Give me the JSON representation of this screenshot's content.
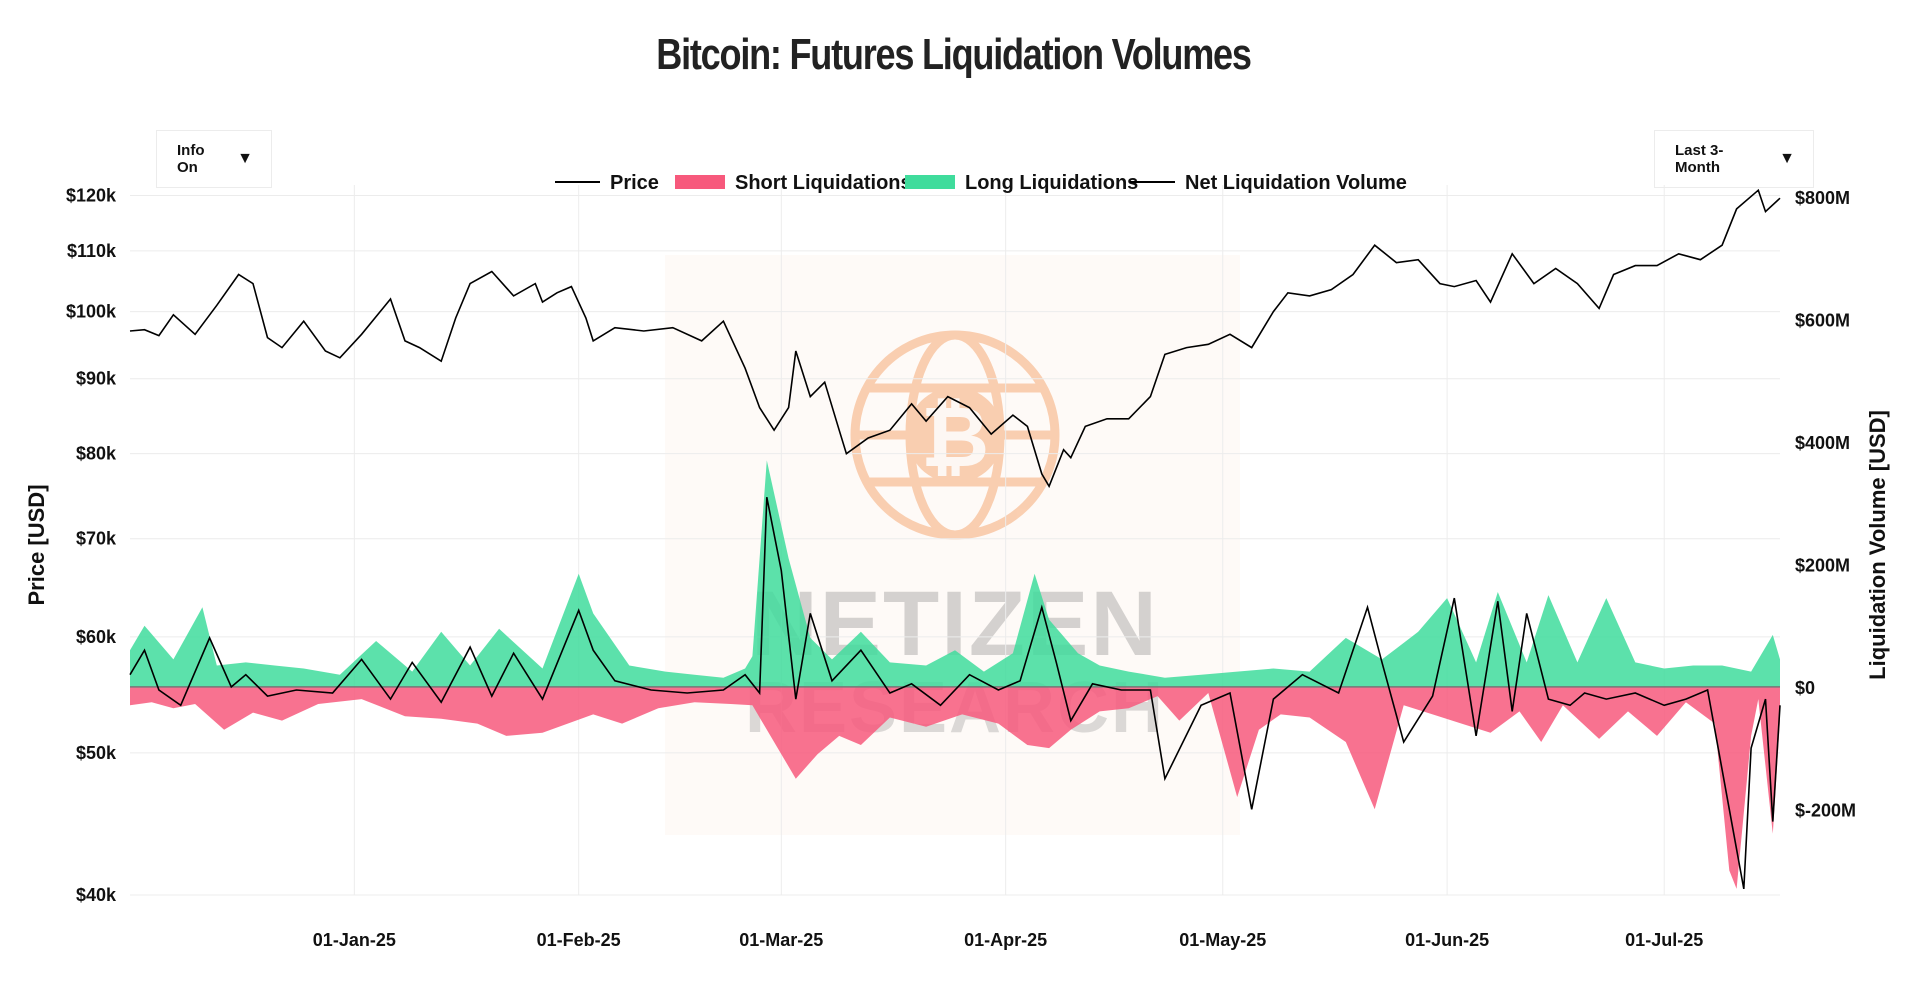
{
  "title": "Bitcoin: Futures Liquidation Volumes",
  "controls": {
    "info_label": "Info On",
    "range_label": "Last 3-Month",
    "dropdown_arrow": "▼"
  },
  "watermark": {
    "line1": "NETIZEN",
    "line2": "RESEARCH",
    "logo": "bitcoin-globe-logo"
  },
  "colors": {
    "price": "#000000",
    "short": "#f7597c",
    "long": "#3fdc9c",
    "net": "#000000",
    "watermark": "#f5a36b"
  },
  "chart_data": {
    "type": "area",
    "title": "Bitcoin: Futures Liquidation Volumes",
    "xlabel": "",
    "ylabel_left": "Price [USD]",
    "ylabel_right": "Liquidation Volume [USD]",
    "y_left_scale": "log",
    "y_left_range": [
      40000,
      122000
    ],
    "y_right_range": [
      -340000000,
      820000000
    ],
    "x_range": [
      "2024-12-01",
      "2025-07-17"
    ],
    "grid": true,
    "legend_position": "top-center",
    "legend": [
      "Price",
      "Short Liquidations",
      "Long Liquidations",
      "Net Liquidation Volume"
    ],
    "x_ticks": [
      {
        "date": "2025-01-01",
        "label": "01-Jan-25"
      },
      {
        "date": "2025-02-01",
        "label": "01-Feb-25"
      },
      {
        "date": "2025-03-01",
        "label": "01-Mar-25"
      },
      {
        "date": "2025-04-01",
        "label": "01-Apr-25"
      },
      {
        "date": "2025-05-01",
        "label": "01-May-25"
      },
      {
        "date": "2025-06-01",
        "label": "01-Jun-25"
      },
      {
        "date": "2025-07-01",
        "label": "01-Jul-25"
      }
    ],
    "y_left_ticks": [
      {
        "value": 120000,
        "label": "$120k"
      },
      {
        "value": 110000,
        "label": "$110k"
      },
      {
        "value": 100000,
        "label": "$100k"
      },
      {
        "value": 90000,
        "label": "$90k"
      },
      {
        "value": 80000,
        "label": "$80k"
      },
      {
        "value": 70000,
        "label": "$70k"
      },
      {
        "value": 60000,
        "label": "$60k"
      },
      {
        "value": 50000,
        "label": "$50k"
      },
      {
        "value": 40000,
        "label": "$40k"
      }
    ],
    "y_right_ticks": [
      {
        "value": 800000000,
        "label": "$800M"
      },
      {
        "value": 600000000,
        "label": "$600M"
      },
      {
        "value": 400000000,
        "label": "$400M"
      },
      {
        "value": 200000000,
        "label": "$200M"
      },
      {
        "value": 0,
        "label": "$0"
      },
      {
        "value": -200000000,
        "label": "$-200M"
      }
    ],
    "series": [
      {
        "name": "Price",
        "axis": "left",
        "x": [
          "2024-12-01",
          "2024-12-03",
          "2024-12-05",
          "2024-12-07",
          "2024-12-10",
          "2024-12-13",
          "2024-12-16",
          "2024-12-18",
          "2024-12-20",
          "2024-12-22",
          "2024-12-25",
          "2024-12-28",
          "2024-12-30",
          "2025-01-02",
          "2025-01-06",
          "2025-01-08",
          "2025-01-10",
          "2025-01-13",
          "2025-01-15",
          "2025-01-17",
          "2025-01-20",
          "2025-01-23",
          "2025-01-26",
          "2025-01-27",
          "2025-01-29",
          "2025-01-31",
          "2025-02-02",
          "2025-02-03",
          "2025-02-06",
          "2025-02-10",
          "2025-02-14",
          "2025-02-18",
          "2025-02-21",
          "2025-02-24",
          "2025-02-26",
          "2025-02-27",
          "2025-02-28",
          "2025-03-02",
          "2025-03-03",
          "2025-03-05",
          "2025-03-07",
          "2025-03-09",
          "2025-03-10",
          "2025-03-13",
          "2025-03-16",
          "2025-03-19",
          "2025-03-21",
          "2025-03-24",
          "2025-03-27",
          "2025-03-30",
          "2025-04-02",
          "2025-04-04",
          "2025-04-06",
          "2025-04-07",
          "2025-04-09",
          "2025-04-10",
          "2025-04-12",
          "2025-04-15",
          "2025-04-18",
          "2025-04-21",
          "2025-04-23",
          "2025-04-26",
          "2025-04-29",
          "2025-05-02",
          "2025-05-05",
          "2025-05-08",
          "2025-05-10",
          "2025-05-13",
          "2025-05-16",
          "2025-05-19",
          "2025-05-22",
          "2025-05-25",
          "2025-05-28",
          "2025-05-31",
          "2025-06-02",
          "2025-06-05",
          "2025-06-07",
          "2025-06-10",
          "2025-06-13",
          "2025-06-16",
          "2025-06-19",
          "2025-06-22",
          "2025-06-24",
          "2025-06-27",
          "2025-06-30",
          "2025-07-03",
          "2025-07-06",
          "2025-07-09",
          "2025-07-11",
          "2025-07-14",
          "2025-07-15",
          "2025-07-17"
        ],
        "values": [
          97000,
          97200,
          96300,
          99500,
          96500,
          101000,
          106000,
          104500,
          96000,
          94500,
          98500,
          94000,
          93000,
          96500,
          102000,
          95500,
          94500,
          92500,
          99000,
          104500,
          106500,
          102500,
          104500,
          101500,
          103000,
          104000,
          99000,
          95500,
          97500,
          97000,
          97500,
          95500,
          98500,
          91500,
          86000,
          84500,
          83000,
          86000,
          94000,
          87500,
          89500,
          83000,
          80000,
          82000,
          83000,
          86500,
          84200,
          87500,
          86000,
          82500,
          85000,
          83500,
          77500,
          76000,
          80500,
          79500,
          83500,
          84500,
          84500,
          87500,
          93500,
          94500,
          95000,
          96500,
          94500,
          100000,
          103000,
          102500,
          103500,
          106000,
          111000,
          108000,
          108500,
          104500,
          104000,
          105000,
          101500,
          109500,
          104500,
          107000,
          104500,
          100500,
          106000,
          107500,
          107500,
          109500,
          108500,
          111000,
          117500,
          121000,
          117000,
          119500
        ]
      },
      {
        "name": "Short Liquidations",
        "axis": "right",
        "x": [
          "2024-12-01",
          "2024-12-04",
          "2024-12-07",
          "2024-12-10",
          "2024-12-14",
          "2024-12-18",
          "2024-12-22",
          "2024-12-27",
          "2025-01-02",
          "2025-01-08",
          "2025-01-13",
          "2025-01-18",
          "2025-01-22",
          "2025-01-27",
          "2025-02-03",
          "2025-02-07",
          "2025-02-12",
          "2025-02-17",
          "2025-02-22",
          "2025-02-25",
          "2025-02-28",
          "2025-03-03",
          "2025-03-06",
          "2025-03-09",
          "2025-03-12",
          "2025-03-16",
          "2025-03-21",
          "2025-03-26",
          "2025-03-31",
          "2025-04-04",
          "2025-04-07",
          "2025-04-10",
          "2025-04-14",
          "2025-04-18",
          "2025-04-22",
          "2025-04-25",
          "2025-04-29",
          "2025-05-03",
          "2025-05-06",
          "2025-05-09",
          "2025-05-13",
          "2025-05-18",
          "2025-05-22",
          "2025-05-26",
          "2025-05-30",
          "2025-06-03",
          "2025-06-07",
          "2025-06-11",
          "2025-06-14",
          "2025-06-17",
          "2025-06-22",
          "2025-06-26",
          "2025-06-30",
          "2025-07-04",
          "2025-07-08",
          "2025-07-10",
          "2025-07-11",
          "2025-07-13",
          "2025-07-14",
          "2025-07-16",
          "2025-07-17"
        ],
        "values": [
          -30000000,
          -25000000,
          -35000000,
          -28000000,
          -70000000,
          -42000000,
          -55000000,
          -28000000,
          -20000000,
          -48000000,
          -52000000,
          -60000000,
          -80000000,
          -75000000,
          -45000000,
          -60000000,
          -35000000,
          -25000000,
          -28000000,
          -30000000,
          -90000000,
          -150000000,
          -110000000,
          -80000000,
          -95000000,
          -50000000,
          -65000000,
          -45000000,
          -60000000,
          -95000000,
          -100000000,
          -70000000,
          -40000000,
          -35000000,
          -15000000,
          -55000000,
          -10000000,
          -180000000,
          -70000000,
          -45000000,
          -50000000,
          -90000000,
          -200000000,
          -30000000,
          -45000000,
          -60000000,
          -75000000,
          -40000000,
          -90000000,
          -30000000,
          -85000000,
          -40000000,
          -80000000,
          -25000000,
          -60000000,
          -300000000,
          -330000000,
          -80000000,
          -20000000,
          -240000000,
          -55000000
        ]
      },
      {
        "name": "Long Liquidations",
        "axis": "right",
        "x": [
          "2024-12-01",
          "2024-12-03",
          "2024-12-07",
          "2024-12-11",
          "2024-12-13",
          "2024-12-17",
          "2024-12-21",
          "2024-12-25",
          "2024-12-30",
          "2025-01-04",
          "2025-01-09",
          "2025-01-13",
          "2025-01-17",
          "2025-01-21",
          "2025-01-27",
          "2025-02-01",
          "2025-02-03",
          "2025-02-08",
          "2025-02-13",
          "2025-02-17",
          "2025-02-21",
          "2025-02-24",
          "2025-02-25",
          "2025-02-27",
          "2025-03-02",
          "2025-03-05",
          "2025-03-08",
          "2025-03-12",
          "2025-03-16",
          "2025-03-21",
          "2025-03-25",
          "2025-03-29",
          "2025-04-02",
          "2025-04-05",
          "2025-04-07",
          "2025-04-11",
          "2025-04-14",
          "2025-04-18",
          "2025-04-23",
          "2025-04-28",
          "2025-05-03",
          "2025-05-08",
          "2025-05-13",
          "2025-05-18",
          "2025-05-23",
          "2025-05-28",
          "2025-06-01",
          "2025-06-05",
          "2025-06-08",
          "2025-06-12",
          "2025-06-15",
          "2025-06-19",
          "2025-06-23",
          "2025-06-27",
          "2025-07-01",
          "2025-07-05",
          "2025-07-09",
          "2025-07-13",
          "2025-07-16",
          "2025-07-17"
        ],
        "values": [
          60000000,
          100000000,
          45000000,
          130000000,
          35000000,
          40000000,
          35000000,
          30000000,
          20000000,
          75000000,
          25000000,
          90000000,
          35000000,
          95000000,
          30000000,
          185000000,
          120000000,
          35000000,
          25000000,
          20000000,
          15000000,
          30000000,
          50000000,
          370000000,
          210000000,
          80000000,
          45000000,
          90000000,
          40000000,
          35000000,
          60000000,
          25000000,
          55000000,
          185000000,
          110000000,
          55000000,
          35000000,
          25000000,
          15000000,
          20000000,
          25000000,
          30000000,
          25000000,
          80000000,
          45000000,
          90000000,
          145000000,
          40000000,
          155000000,
          40000000,
          150000000,
          40000000,
          145000000,
          40000000,
          30000000,
          35000000,
          35000000,
          25000000,
          85000000,
          45000000
        ]
      },
      {
        "name": "Net Liquidation Volume",
        "axis": "right",
        "x": [
          "2024-12-01",
          "2024-12-03",
          "2024-12-05",
          "2024-12-08",
          "2024-12-12",
          "2024-12-15",
          "2024-12-17",
          "2024-12-20",
          "2024-12-24",
          "2024-12-29",
          "2025-01-02",
          "2025-01-06",
          "2025-01-09",
          "2025-01-13",
          "2025-01-17",
          "2025-01-20",
          "2025-01-23",
          "2025-01-27",
          "2025-02-01",
          "2025-02-03",
          "2025-02-06",
          "2025-02-11",
          "2025-02-16",
          "2025-02-21",
          "2025-02-24",
          "2025-02-26",
          "2025-02-27",
          "2025-03-01",
          "2025-03-03",
          "2025-03-05",
          "2025-03-08",
          "2025-03-12",
          "2025-03-16",
          "2025-03-19",
          "2025-03-23",
          "2025-03-27",
          "2025-03-31",
          "2025-04-03",
          "2025-04-06",
          "2025-04-08",
          "2025-04-10",
          "2025-04-13",
          "2025-04-17",
          "2025-04-21",
          "2025-04-23",
          "2025-04-28",
          "2025-05-02",
          "2025-05-05",
          "2025-05-08",
          "2025-05-12",
          "2025-05-17",
          "2025-05-21",
          "2025-05-23",
          "2025-05-26",
          "2025-05-30",
          "2025-06-02",
          "2025-06-05",
          "2025-06-08",
          "2025-06-10",
          "2025-06-12",
          "2025-06-15",
          "2025-06-18",
          "2025-06-20",
          "2025-06-23",
          "2025-06-27",
          "2025-07-01",
          "2025-07-04",
          "2025-07-07",
          "2025-07-10",
          "2025-07-12",
          "2025-07-13",
          "2025-07-15",
          "2025-07-16",
          "2025-07-17"
        ],
        "values": [
          20000000,
          60000000,
          -5000000,
          -30000000,
          80000000,
          0,
          20000000,
          -15000000,
          -5000000,
          -10000000,
          45000000,
          -20000000,
          40000000,
          -25000000,
          65000000,
          -15000000,
          55000000,
          -20000000,
          125000000,
          60000000,
          10000000,
          -5000000,
          -10000000,
          -5000000,
          20000000,
          -10000000,
          310000000,
          190000000,
          -20000000,
          120000000,
          10000000,
          60000000,
          -10000000,
          5000000,
          -30000000,
          20000000,
          -5000000,
          10000000,
          130000000,
          40000000,
          -55000000,
          5000000,
          -5000000,
          -5000000,
          -150000000,
          -30000000,
          -10000000,
          -200000000,
          -20000000,
          20000000,
          -10000000,
          130000000,
          40000000,
          -90000000,
          -15000000,
          145000000,
          -80000000,
          140000000,
          -40000000,
          120000000,
          -20000000,
          -30000000,
          -10000000,
          -20000000,
          -10000000,
          -30000000,
          -20000000,
          -5000000,
          -200000000,
          -330000000,
          -100000000,
          -20000000,
          -220000000,
          -30000000
        ]
      }
    ]
  }
}
